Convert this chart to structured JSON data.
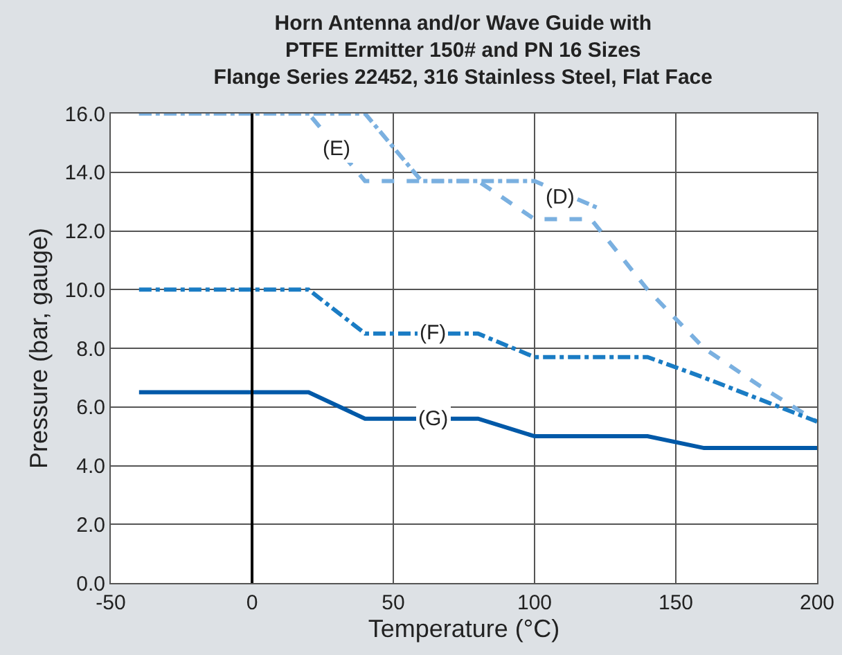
{
  "chart_data": {
    "type": "line",
    "title": "Horn Antenna and/or Wave Guide with\nPTFE Ermitter 150# and PN 16 Sizes\nFlange Series 22452, 316 Stainless Steel, Flat Face",
    "xlabel": "Temperature (°C)",
    "ylabel": "Pressure (bar, gauge)",
    "series": [
      {
        "color": "#7ab0e0",
        "line_style": "dashed",
        "x": [
          -40,
          20,
          40,
          80,
          100,
          120,
          140,
          160,
          180,
          200
        ],
        "values": [
          16,
          16,
          13.7,
          13.7,
          12.4,
          12.4,
          10,
          8,
          6.7,
          5.5
        ]
      },
      {
        "color": "#7ab0e0",
        "line_style": "dashdot",
        "x": [
          -40,
          40,
          60,
          100,
          122
        ],
        "values": [
          16,
          16,
          13.7,
          13.7,
          12.8
        ]
      },
      {
        "color": "#1a7cc4",
        "line_style": "dashdot",
        "x": [
          -40,
          20,
          40,
          80,
          100,
          140,
          160,
          200
        ],
        "values": [
          10,
          10,
          8.5,
          8.5,
          7.7,
          7.7,
          7,
          5.5
        ]
      },
      {
        "color": "#0059a8",
        "line_style": "solid",
        "x": [
          -40,
          20,
          40,
          80,
          100,
          140,
          160,
          200
        ],
        "values": [
          6.5,
          6.5,
          5.6,
          5.6,
          5,
          5,
          4.6,
          4.6
        ]
      }
    ],
    "annotations": [
      {
        "text": "(E)",
        "x": 30,
        "y": 14.8
      },
      {
        "text": "(D)",
        "x": 109,
        "y": 13.15
      },
      {
        "text": "(F)",
        "x": 64,
        "y": 8.5
      },
      {
        "text": "(G)",
        "x": 64,
        "y": 5.6
      }
    ],
    "ref_lines": [
      {
        "axis": "x",
        "value": 0,
        "color": "#000000"
      }
    ],
    "xlim": [
      -50,
      200
    ],
    "xticks": [
      -50,
      0,
      50,
      100,
      150,
      200
    ],
    "ylim": [
      0,
      16
    ],
    "yticks": [
      {
        "value": 0,
        "label": "0.0"
      },
      {
        "value": 2,
        "label": "2.0"
      },
      {
        "value": 4,
        "label": "4.0"
      },
      {
        "value": 6,
        "label": "6.0"
      },
      {
        "value": 8,
        "label": "8.0"
      },
      {
        "value": 10,
        "label": "10.0"
      },
      {
        "value": 12,
        "label": "12.0"
      },
      {
        "value": 14,
        "label": "14.0"
      },
      {
        "value": 16,
        "label": "16.0"
      }
    ],
    "grid": true,
    "marker": "none"
  }
}
